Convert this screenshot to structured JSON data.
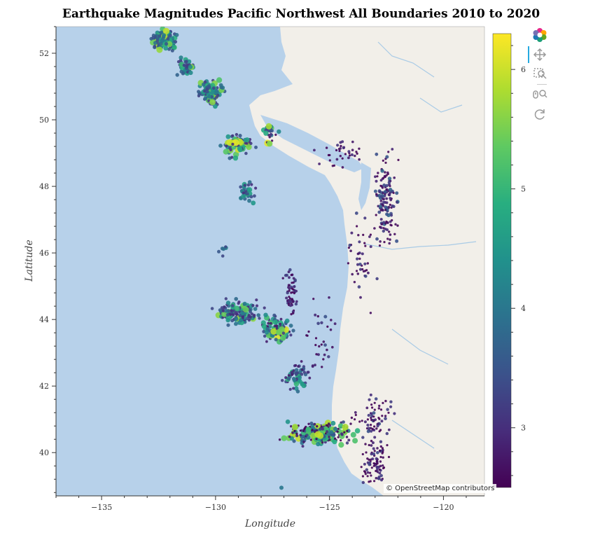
{
  "chart_data": {
    "type": "scatter",
    "title": "Earthquake Magnitudes Pacific Northwest All Boundaries 2010 to 2020",
    "xlabel": "Longitude",
    "ylabel": "Latitude",
    "xlim": [
      -137,
      -118.2
    ],
    "ylim": [
      38.7,
      52.8
    ],
    "xticks": [
      -135,
      -130,
      -125,
      -120
    ],
    "yticks": [
      40,
      42,
      44,
      46,
      48,
      50,
      52
    ],
    "xtick_labels": [
      "−135",
      "−130",
      "−125",
      "−120"
    ],
    "ytick_labels": [
      "40",
      "42",
      "44",
      "46",
      "48",
      "50",
      "52"
    ],
    "color_field": "magnitude",
    "colorbar": {
      "colormap": "viridis",
      "range": [
        2.5,
        6.3
      ],
      "ticks": [
        3,
        4,
        5,
        6
      ],
      "tick_labels": [
        "3",
        "4",
        "5",
        "6"
      ]
    },
    "grid": false,
    "basemap": "OpenStreetMap",
    "clusters": [
      {
        "lon": -132.3,
        "lat": 52.4,
        "lon_spread": 0.5,
        "lat_spread": 0.3,
        "count": 120,
        "mag_min": 3.4,
        "mag_max": 6.0
      },
      {
        "lon": -131.3,
        "lat": 51.6,
        "lon_spread": 0.4,
        "lat_spread": 0.3,
        "count": 40,
        "mag_min": 3.2,
        "mag_max": 5.6
      },
      {
        "lon": -130.2,
        "lat": 50.8,
        "lon_spread": 0.45,
        "lat_spread": 0.35,
        "count": 110,
        "mag_min": 3.2,
        "mag_max": 6.0
      },
      {
        "lon": -129.0,
        "lat": 49.3,
        "lon_spread": 0.7,
        "lat_spread": 0.3,
        "count": 80,
        "mag_min": 3.0,
        "mag_max": 6.2
      },
      {
        "lon": -127.6,
        "lat": 49.6,
        "lon_spread": 0.4,
        "lat_spread": 0.3,
        "count": 25,
        "mag_min": 2.6,
        "mag_max": 6.2
      },
      {
        "lon": -128.6,
        "lat": 47.8,
        "lon_spread": 0.35,
        "lat_spread": 0.35,
        "count": 35,
        "mag_min": 3.0,
        "mag_max": 5.0
      },
      {
        "lon": -124.5,
        "lat": 49.0,
        "lon_spread": 0.9,
        "lat_spread": 0.4,
        "count": 35,
        "mag_min": 2.5,
        "mag_max": 3.2
      },
      {
        "lon": -122.5,
        "lat": 47.5,
        "lon_spread": 0.45,
        "lat_spread": 1.3,
        "count": 140,
        "mag_min": 2.5,
        "mag_max": 3.8
      },
      {
        "lon": -123.6,
        "lat": 45.8,
        "lon_spread": 0.6,
        "lat_spread": 1.2,
        "count": 45,
        "mag_min": 2.5,
        "mag_max": 3.4
      },
      {
        "lon": -129.7,
        "lat": 46.1,
        "lon_spread": 0.2,
        "lat_spread": 0.15,
        "count": 6,
        "mag_min": 3.3,
        "mag_max": 4.5
      },
      {
        "lon": -129.0,
        "lat": 44.2,
        "lon_spread": 0.9,
        "lat_spread": 0.3,
        "count": 130,
        "mag_min": 3.0,
        "mag_max": 5.8
      },
      {
        "lon": -127.3,
        "lat": 43.7,
        "lon_spread": 0.7,
        "lat_spread": 0.3,
        "count": 110,
        "mag_min": 2.8,
        "mag_max": 6.2
      },
      {
        "lon": -126.7,
        "lat": 44.8,
        "lon_spread": 0.25,
        "lat_spread": 0.6,
        "count": 60,
        "mag_min": 2.5,
        "mag_max": 3.3
      },
      {
        "lon": -126.4,
        "lat": 42.3,
        "lon_spread": 0.6,
        "lat_spread": 0.4,
        "count": 60,
        "mag_min": 2.8,
        "mag_max": 5.0
      },
      {
        "lon": -125.5,
        "lat": 40.6,
        "lon_spread": 1.3,
        "lat_spread": 0.3,
        "count": 260,
        "mag_min": 2.5,
        "mag_max": 6.0
      },
      {
        "lon": -123.0,
        "lat": 41.0,
        "lon_spread": 0.7,
        "lat_spread": 0.7,
        "count": 70,
        "mag_min": 2.5,
        "mag_max": 3.6
      },
      {
        "lon": -123.0,
        "lat": 39.7,
        "lon_spread": 0.5,
        "lat_spread": 0.6,
        "count": 80,
        "mag_min": 2.5,
        "mag_max": 3.3
      },
      {
        "lon": -125.3,
        "lat": 43.6,
        "lon_spread": 0.8,
        "lat_spread": 1.0,
        "count": 30,
        "mag_min": 2.5,
        "mag_max": 3.5
      },
      {
        "lon": -127.1,
        "lat": 38.9,
        "lon_spread": 0.05,
        "lat_spread": 0.05,
        "count": 1,
        "mag_min": 4.0,
        "mag_max": 4.0
      }
    ]
  },
  "attribution": "© OpenStreetMap contributors",
  "toolbar": {
    "tools": [
      {
        "icon": "bokeh-logo-icon",
        "active": false
      },
      {
        "icon": "pan-icon",
        "active": true
      },
      {
        "icon": "box-zoom-icon",
        "active": false
      },
      {
        "icon": "wheel-zoom-icon",
        "active": false
      },
      {
        "icon": "reset-icon",
        "active": false
      }
    ]
  },
  "colors": {
    "ocean": "#b7d1ea",
    "land": "#f2efe9",
    "water_lines": "#a9cbe6",
    "frame": "#333333"
  }
}
